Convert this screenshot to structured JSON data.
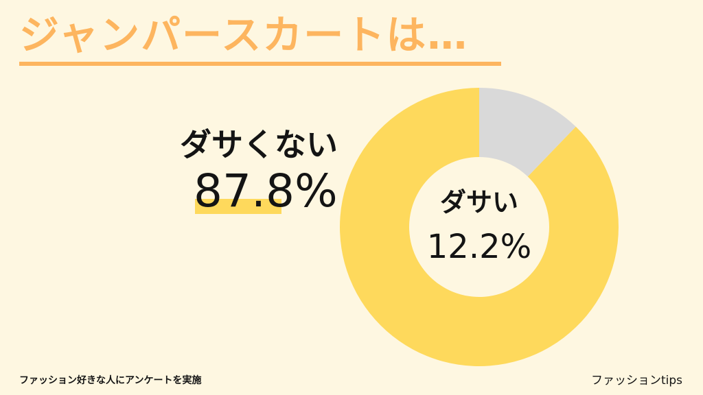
{
  "title": "ジャンパースカートは…",
  "colors": {
    "background": "#fef7e1",
    "title": "#fdb55f",
    "not_dasai": "#fed95c",
    "dasai": "#d9d9d9",
    "highlight": "#fed95c"
  },
  "chart_data": {
    "type": "pie",
    "donut": true,
    "slices": [
      {
        "label": "ダサい",
        "value": 12.2,
        "display": "12.2%",
        "color": "#d9d9d9"
      },
      {
        "label": "ダサくない",
        "value": 87.8,
        "display": "87.8%",
        "color": "#fed95c"
      }
    ]
  },
  "footer": {
    "source": "ファッション好きな人にアンケートを実施",
    "brand": "ファッションtips"
  }
}
